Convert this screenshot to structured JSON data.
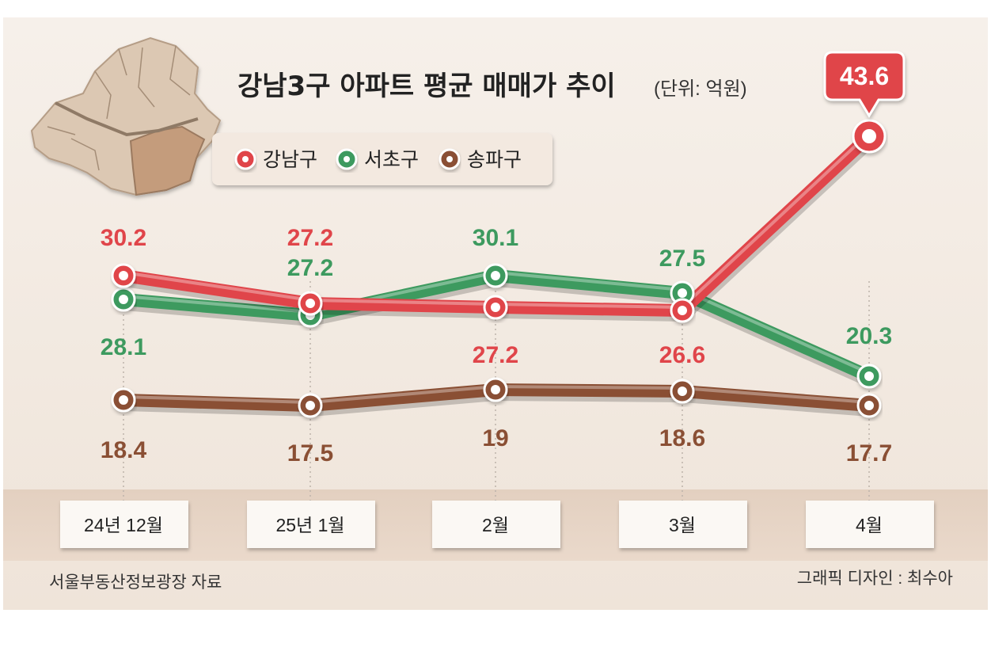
{
  "chart_data": {
    "type": "line",
    "title": "강남3구 아파트 평균 매매가 추이",
    "unit": "(단위: 억원)",
    "categories": [
      "24년 12월",
      "25년 1월",
      "2월",
      "3월",
      "4월"
    ],
    "series": [
      {
        "name": "강남구",
        "values": [
          30.2,
          27.2,
          27.2,
          26.6,
          43.6
        ],
        "labels": [
          "30.2",
          "27.2",
          "27.2",
          "26.6",
          "43.6"
        ],
        "color": "#e0454a"
      },
      {
        "name": "서초구",
        "values": [
          28.1,
          27.2,
          30.1,
          27.5,
          20.3
        ],
        "labels": [
          "28.1",
          "27.2",
          "30.1",
          "27.5",
          "20.3"
        ],
        "color": "#3d9a5f"
      },
      {
        "name": "송파구",
        "values": [
          18.4,
          17.5,
          19,
          18.6,
          17.7
        ],
        "labels": [
          "18.4",
          "17.5",
          "19",
          "18.6",
          "17.7"
        ],
        "color": "#8a4f34"
      }
    ],
    "highlight": {
      "series": "강남구",
      "category": "4월",
      "label": "43.6"
    },
    "legend_position": "top-center",
    "grid": false
  },
  "footer": {
    "source": "서울부동산정보광장 자료",
    "credit": "그래픽 디자인 : 최수아"
  },
  "colors": {
    "background": "#f4ede5",
    "axis_band": "#e7d6c8",
    "label_box": "#fbf8f4",
    "map_fill": "#d9c3ad",
    "map_highlight": "#c39a7a"
  }
}
